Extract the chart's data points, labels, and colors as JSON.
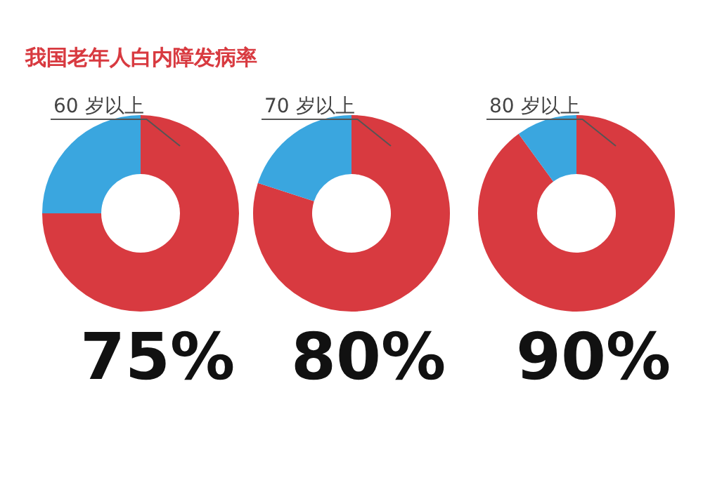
{
  "chart_data": [
    {
      "type": "donut",
      "title": "我国老年人白内障发病率",
      "subtitle": "60 岁以上",
      "categories": [
        null,
        null
      ],
      "values": [
        75,
        25
      ],
      "colors": [
        "#d83a40",
        "#3aa6df"
      ],
      "value_labels": [
        "75%",
        null
      ]
    },
    {
      "type": "donut",
      "subtitle": "70 岁以上",
      "categories": [
        null,
        null
      ],
      "values": [
        80,
        20
      ],
      "colors": [
        "#d83a40",
        "#3aa6df"
      ],
      "value_labels": [
        "80%",
        null
      ]
    },
    {
      "type": "donut",
      "subtitle": "80 岁以上",
      "categories": [
        null,
        null
      ],
      "values": [
        90,
        10
      ],
      "colors": [
        "#d83a40",
        "#3aa6df"
      ],
      "value_labels": [
        "90%",
        null
      ]
    }
  ]
}
